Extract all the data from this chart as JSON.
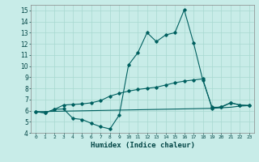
{
  "xlabel": "Humidex (Indice chaleur)",
  "background_color": "#c8ece8",
  "grid_color": "#a8d8d0",
  "line_color": "#006060",
  "xlim": [
    -0.5,
    23.5
  ],
  "ylim": [
    4,
    15.5
  ],
  "yticks": [
    4,
    5,
    6,
    7,
    8,
    9,
    10,
    11,
    12,
    13,
    14,
    15
  ],
  "xticks": [
    0,
    1,
    2,
    3,
    4,
    5,
    6,
    7,
    8,
    9,
    10,
    11,
    12,
    13,
    14,
    15,
    16,
    17,
    18,
    19,
    20,
    21,
    22,
    23
  ],
  "series1_x": [
    0,
    1,
    2,
    3,
    4,
    5,
    6,
    7,
    8,
    9,
    10,
    11,
    12,
    13,
    14,
    15,
    16,
    17,
    18,
    19,
    20,
    21,
    22,
    23
  ],
  "series1_y": [
    5.9,
    5.8,
    6.1,
    6.15,
    5.3,
    5.2,
    4.85,
    4.55,
    4.35,
    5.6,
    10.1,
    11.2,
    13.0,
    12.2,
    12.8,
    13.0,
    15.05,
    12.1,
    8.75,
    6.3,
    6.3,
    6.7,
    6.5,
    6.45
  ],
  "series2_x": [
    0,
    1,
    2,
    3,
    4,
    5,
    6,
    7,
    8,
    9,
    10,
    11,
    12,
    13,
    14,
    15,
    16,
    17,
    18,
    19,
    20,
    21,
    22,
    23
  ],
  "series2_y": [
    5.9,
    5.8,
    6.1,
    6.5,
    6.55,
    6.6,
    6.7,
    6.9,
    7.3,
    7.55,
    7.75,
    7.9,
    8.0,
    8.1,
    8.3,
    8.5,
    8.65,
    8.75,
    8.85,
    6.2,
    6.35,
    6.7,
    6.5,
    6.45
  ],
  "series3_x": [
    0,
    19,
    20,
    21,
    22,
    23
  ],
  "series3_y": [
    5.9,
    6.2,
    6.25,
    6.3,
    6.4,
    6.45
  ]
}
